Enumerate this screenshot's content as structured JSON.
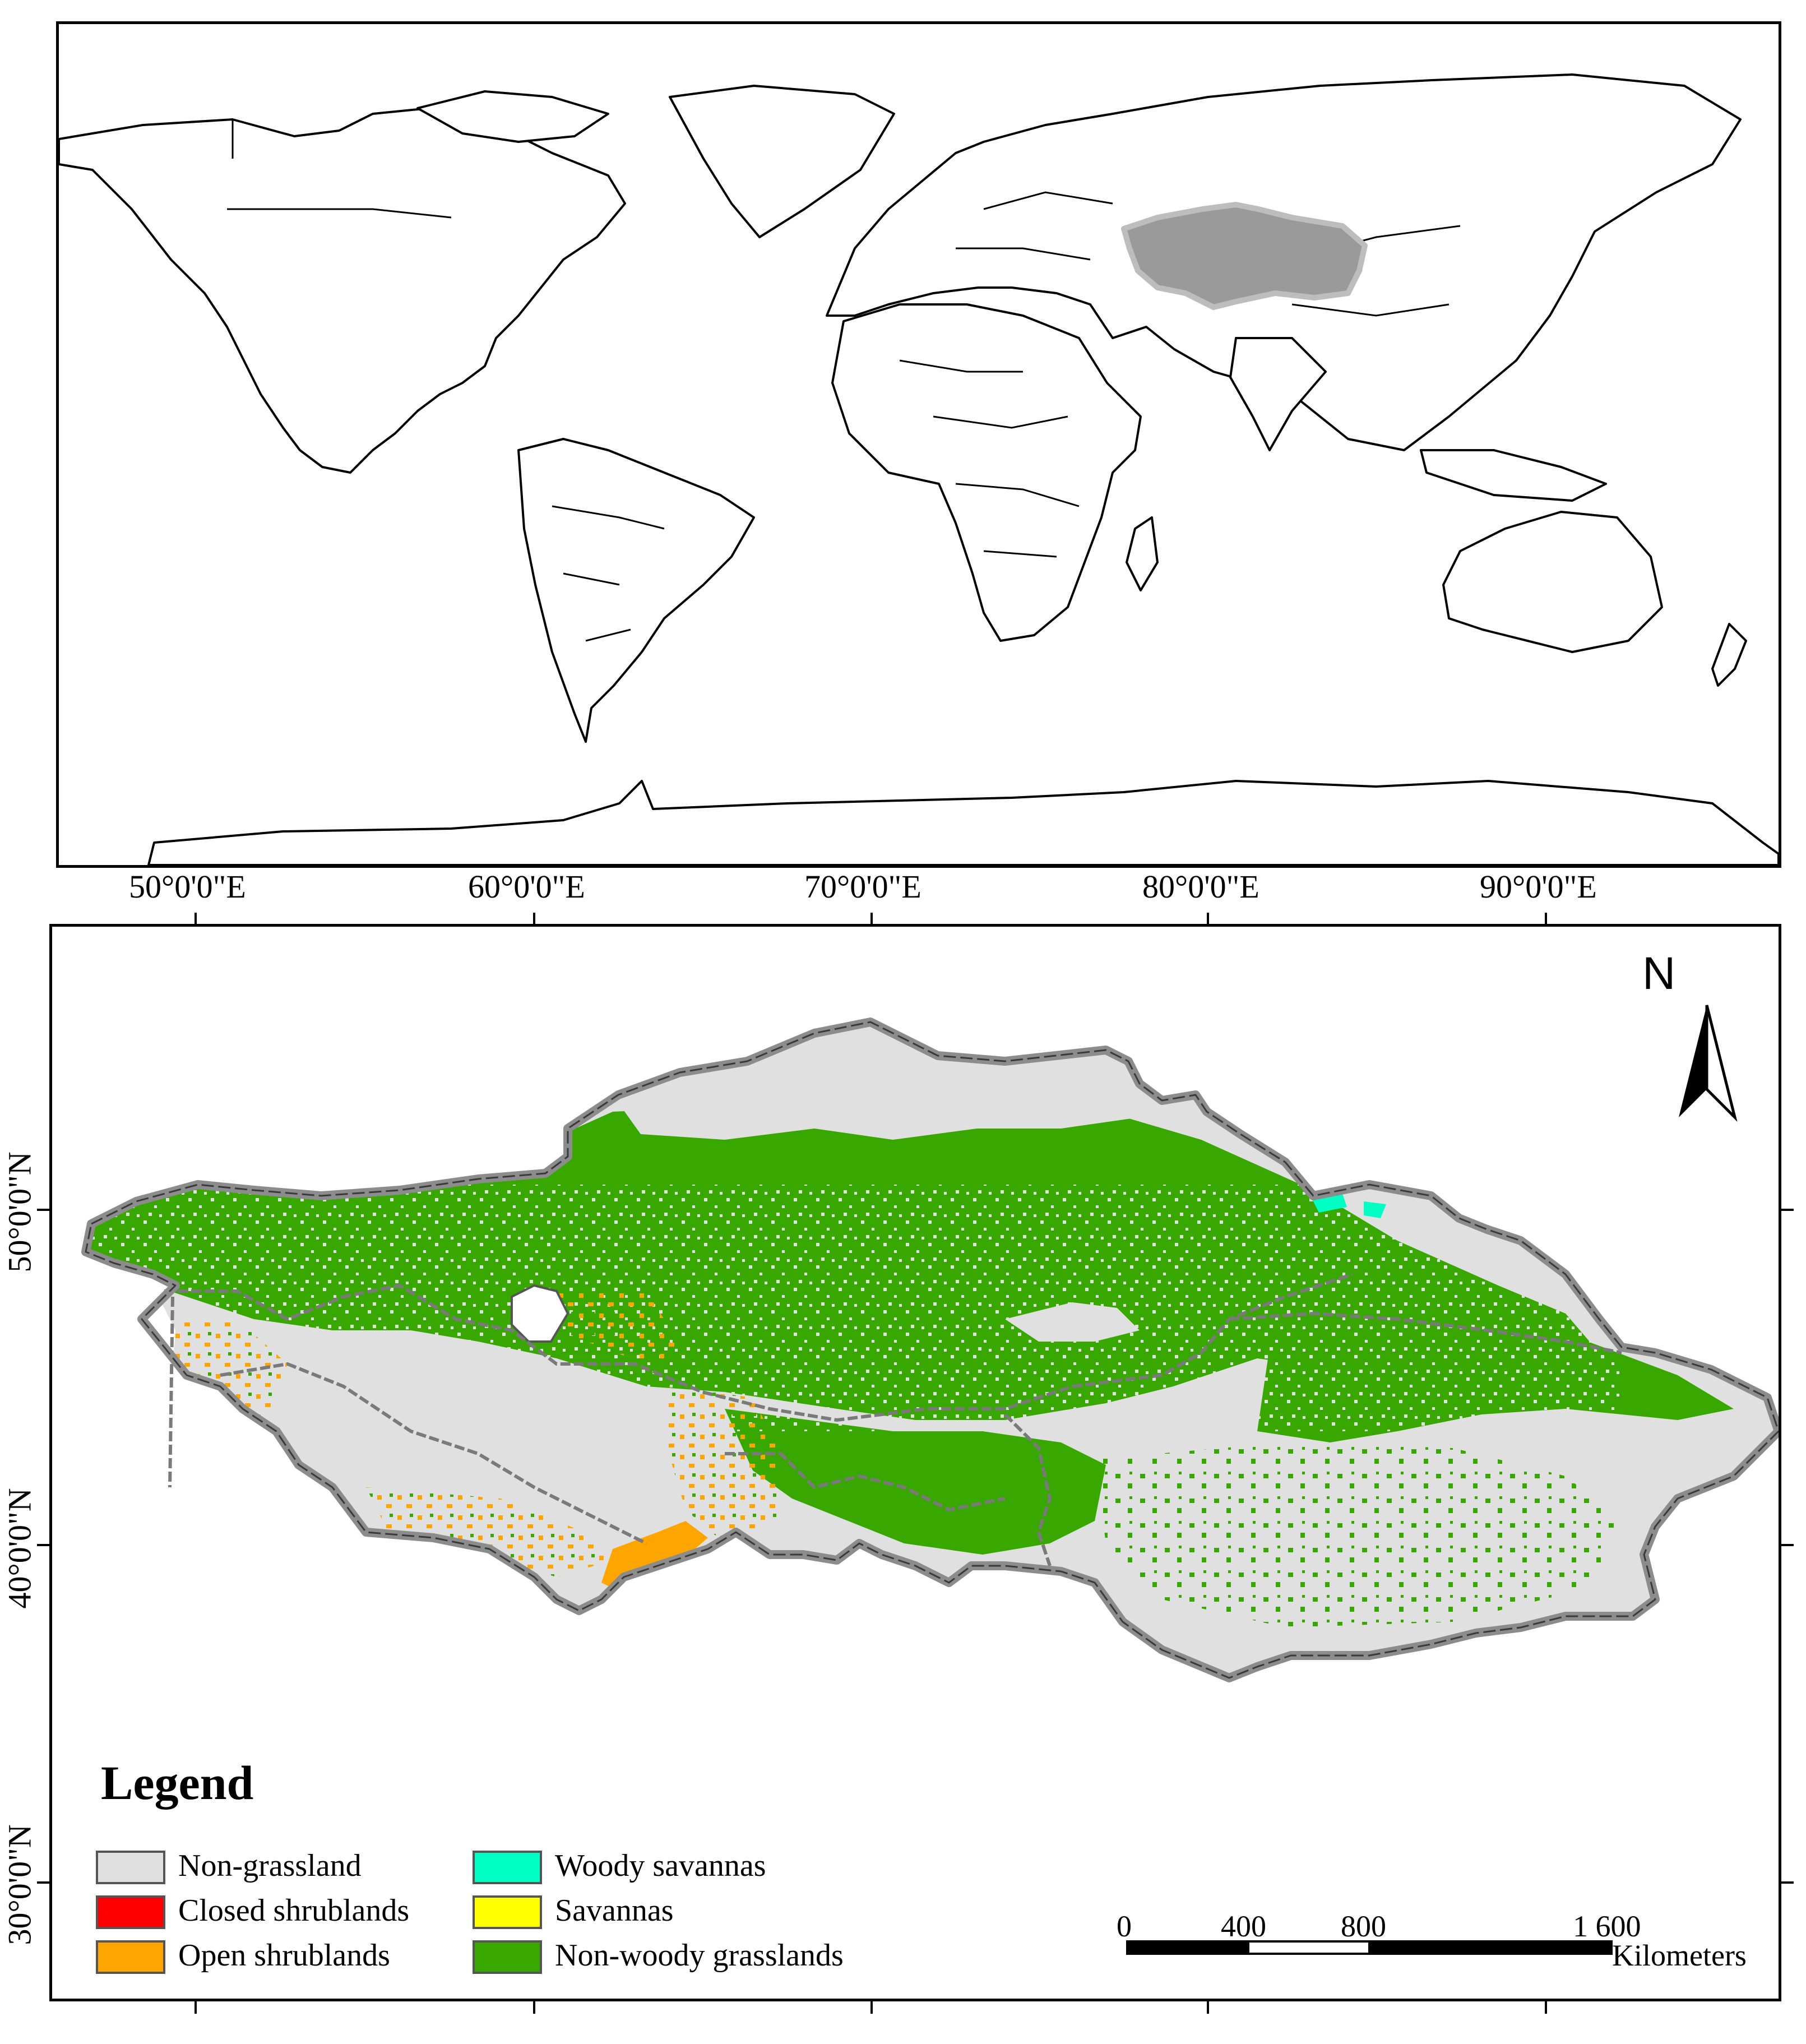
{
  "longitude_axis": {
    "labels": [
      "50°0'0\"E",
      "60°0'0\"E",
      "70°0'0\"E",
      "80°0'0\"E",
      "90°0'0\"E"
    ]
  },
  "latitude_axis": {
    "labels": [
      "50°0'0\"N",
      "40°0'0\"N",
      "30°0'0\"N"
    ]
  },
  "north_arrow": {
    "letter": "N"
  },
  "legend": {
    "title": "Legend",
    "items": [
      {
        "label": "Non-grassland",
        "color": "#e0e0e0"
      },
      {
        "label": "Closed shrublands",
        "color": "#ff0000"
      },
      {
        "label": "Open shrublands",
        "color": "#ffa500"
      },
      {
        "label": "Woody savannas",
        "color": "#00ffc5"
      },
      {
        "label": "Savannas",
        "color": "#ffff00"
      },
      {
        "label": "Non-woody grasslands",
        "color": "#38a800"
      }
    ]
  },
  "scale_bar": {
    "ticks": [
      "0",
      "400",
      "800",
      "1 600"
    ],
    "unit": "Kilometers"
  },
  "highlight_color": "#9a9a9a",
  "boundary_color": "#8c8c8c"
}
